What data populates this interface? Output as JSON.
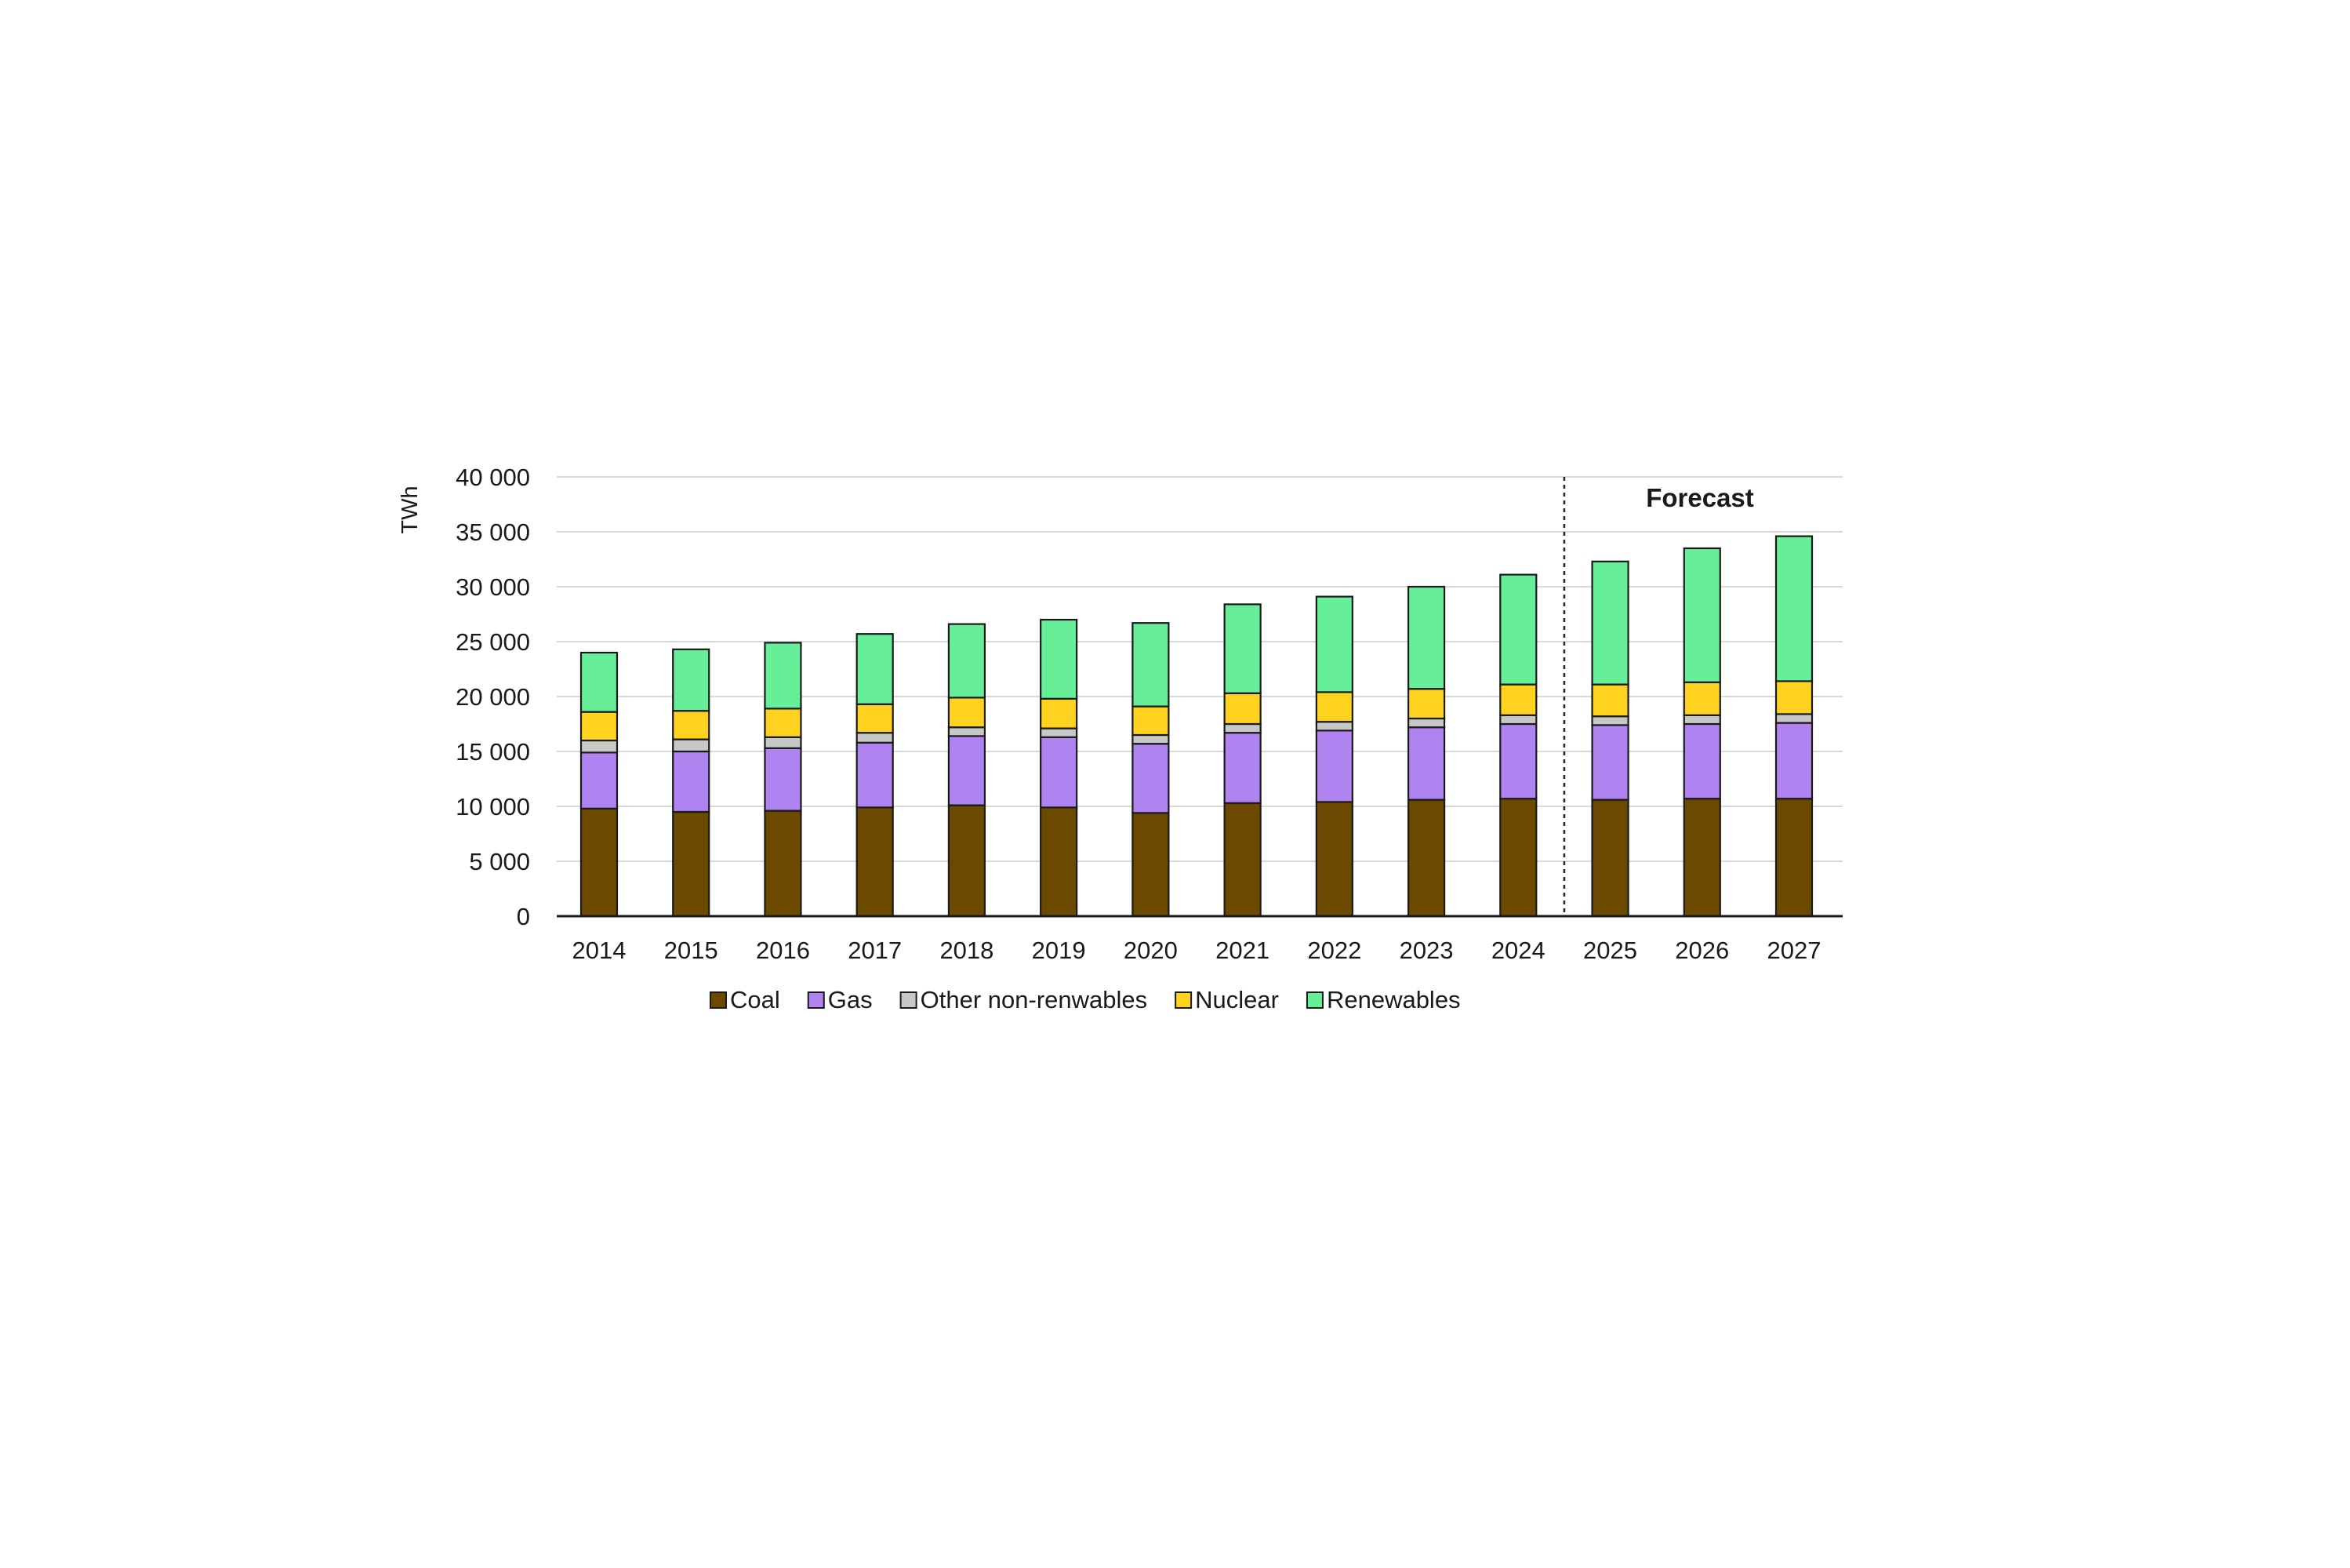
{
  "chart_data": {
    "type": "bar",
    "stacked": true,
    "title": "",
    "xlabel": "",
    "ylabel": "TWh",
    "ylim": [
      0,
      40000
    ],
    "yticks": [
      0,
      5000,
      10000,
      15000,
      20000,
      25000,
      30000,
      35000,
      40000
    ],
    "ytick_labels": [
      "0",
      "5 000",
      "10 000",
      "15 000",
      "20 000",
      "25 000",
      "30 000",
      "35 000",
      "40 000"
    ],
    "grid": true,
    "legend_position": "bottom",
    "annotation": "Forecast",
    "forecast_start_category": "2025",
    "categories": [
      "2014",
      "2015",
      "2016",
      "2017",
      "2018",
      "2019",
      "2020",
      "2021",
      "2022",
      "2023",
      "2024",
      "2025",
      "2026",
      "2027"
    ],
    "series": [
      {
        "name": "Coal",
        "color": "#6b4a00",
        "values": [
          9800,
          9500,
          9600,
          9900,
          10100,
          9900,
          9400,
          10300,
          10400,
          10600,
          10700,
          10600,
          10700,
          10700
        ]
      },
      {
        "name": "Gas",
        "color": "#b084f0",
        "values": [
          5100,
          5500,
          5700,
          5900,
          6300,
          6400,
          6300,
          6400,
          6500,
          6600,
          6800,
          6800,
          6800,
          6900
        ]
      },
      {
        "name": "Other non-renwables",
        "color": "#c8c8c8",
        "values": [
          1100,
          1100,
          1000,
          900,
          800,
          800,
          800,
          800,
          800,
          800,
          800,
          800,
          800,
          800
        ]
      },
      {
        "name": "Nuclear",
        "color": "#ffd21f",
        "values": [
          2600,
          2600,
          2600,
          2600,
          2700,
          2700,
          2600,
          2800,
          2700,
          2700,
          2800,
          2900,
          3000,
          3000
        ]
      },
      {
        "name": "Renewables",
        "color": "#66ee99",
        "values": [
          5400,
          5600,
          6000,
          6400,
          6700,
          7200,
          7600,
          8100,
          8700,
          9300,
          10000,
          11200,
          12200,
          13200
        ]
      }
    ]
  }
}
